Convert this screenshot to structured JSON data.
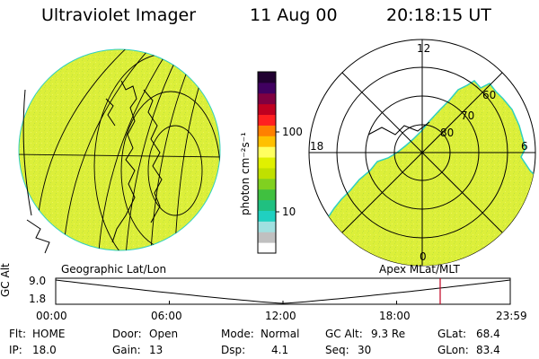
{
  "header": {
    "instrument": "Ultraviolet Imager",
    "date": "11 Aug 00",
    "time": "20:18:15 UT"
  },
  "colorbar": {
    "unit_label": "photon cm⁻²s⁻¹",
    "ticks": [
      "100",
      "10"
    ],
    "colors": [
      "#ffffff",
      "#c0c0c0",
      "#a0e0e0",
      "#20d0c0",
      "#20c080",
      "#40c040",
      "#80d020",
      "#c0e000",
      "#e0f000",
      "#ffff60",
      "#ffc000",
      "#ff8000",
      "#ff2020",
      "#c00020",
      "#800040",
      "#400060",
      "#200030"
    ]
  },
  "maps": {
    "left_caption": "Geographic Lat/Lon",
    "right_caption": "Apex MLat/MLT",
    "polar_mlt_labels": {
      "top": "12",
      "bottom": "0",
      "left": "18",
      "right": "6"
    },
    "polar_lat_labels": [
      "60",
      "70",
      "80"
    ],
    "fill_color": "#ddf03c",
    "edge_color": "#30d0c0"
  },
  "timeline": {
    "ylabel": "GC Alt",
    "ymax": "9.0",
    "ymin": "1.8",
    "ticks": [
      "00:00",
      "06:00",
      "12:00",
      "18:00",
      "23:59"
    ],
    "marker_time_hours": 20.3
  },
  "footer": {
    "row1": [
      {
        "key": "Flt:",
        "value": "HOME"
      },
      {
        "key": "Door:",
        "value": "Open"
      },
      {
        "key": "Mode:",
        "value": "Normal"
      },
      {
        "key": "GC Alt:",
        "value": "9.3 Re"
      },
      {
        "key": "GLat:",
        "value": "68.4"
      }
    ],
    "row2": [
      {
        "key": "IP:",
        "value": "18.0"
      },
      {
        "key": "Gain:",
        "value": "13"
      },
      {
        "key": "Dsp:",
        "value": "4.1"
      },
      {
        "key": "Seq:",
        "value": "30"
      },
      {
        "key": "GLon:",
        "value": "83.4"
      }
    ]
  }
}
